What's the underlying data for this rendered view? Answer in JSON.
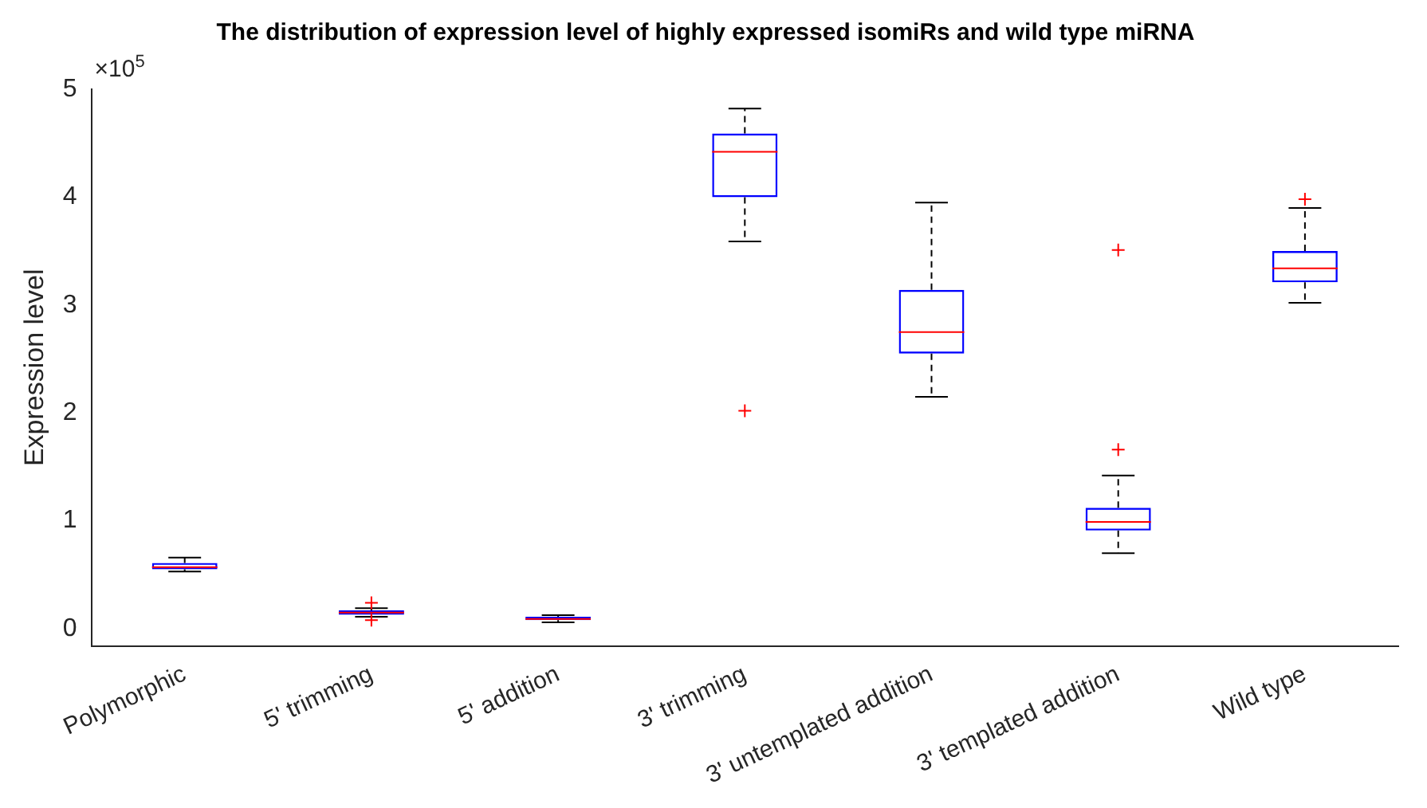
{
  "chart_data": {
    "type": "box",
    "title": "The distribution of expression level of highly expressed isomiRs and wild type miRNA",
    "ylabel": "Expression level",
    "annotations": [
      "×10$^{5}$"
    ],
    "categories": [
      "Polymorphic",
      "5' trimming",
      "5' addition",
      "3' trimming",
      "3' untemplated addition",
      "3' templated addition",
      "Wild type"
    ],
    "boxes": [
      {
        "low": 0.53,
        "q1": 0.55,
        "median": 0.57,
        "q3": 0.61,
        "high": 0.66
      },
      {
        "low": 0.11,
        "q1": 0.13,
        "median": 0.15,
        "q3": 0.17,
        "high": 0.19,
        "outliers": [
          0.24,
          0.08
        ]
      },
      {
        "low": 0.06,
        "q1": 0.08,
        "median": 0.09,
        "q3": 0.11,
        "high": 0.125
      },
      {
        "low": 3.59,
        "q1": 4.0,
        "median": 4.42,
        "q3": 4.59,
        "high": 4.82,
        "outliers": [
          2.02
        ]
      },
      {
        "low": 2.15,
        "q1": 2.55,
        "median": 2.75,
        "q3": 3.14,
        "high": 3.95
      },
      {
        "low": 0.7,
        "q1": 0.91,
        "median": 0.99,
        "q3": 1.12,
        "high": 1.42,
        "outliers": [
          3.51,
          1.66
        ]
      },
      {
        "low": 3.02,
        "q1": 3.21,
        "median": 3.34,
        "q3": 3.5,
        "high": 3.9,
        "outliers": [
          3.98
        ]
      }
    ],
    "color": "#0000ff",
    "ylim": [
      -0.16,
      5
    ],
    "yticks": [
      0,
      1,
      2,
      3,
      4,
      5
    ],
    "grid": false,
    "legend": false
  }
}
